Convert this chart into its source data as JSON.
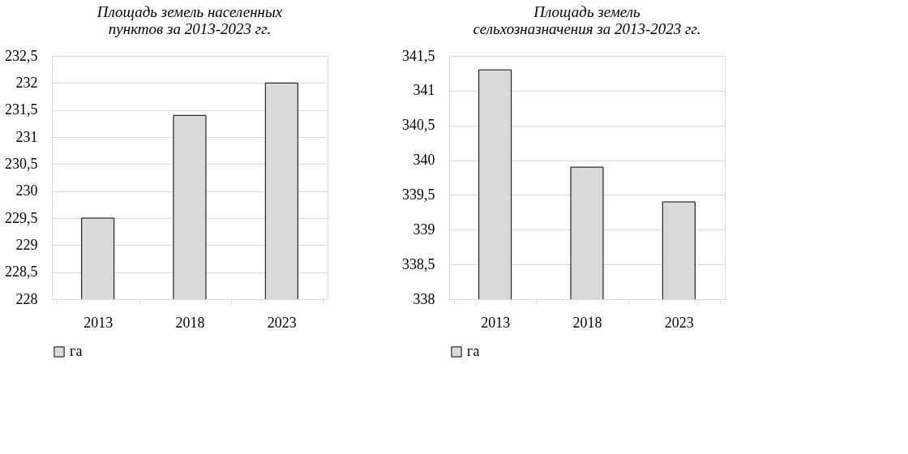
{
  "chart_data": [
    {
      "type": "bar",
      "title": "Площадь земель населенных\nпунктов за 2013-2023 гг.",
      "categories": [
        "2013",
        "2018",
        "2023"
      ],
      "series": [
        {
          "name": "га",
          "color": "#d9d9d9",
          "values": [
            229.5,
            231.4,
            232.0
          ]
        }
      ],
      "ylim": [
        228,
        232.5
      ],
      "yticks": [
        228,
        {
          "value": 228.5,
          "label": "228,5"
        },
        229,
        {
          "value": 229.5,
          "label": "229,5"
        },
        230,
        {
          "value": 230.5,
          "label": "230,5"
        },
        231,
        {
          "value": 231.5,
          "label": "231,5"
        },
        232,
        {
          "value": 232.5,
          "label": "232,5"
        }
      ],
      "grid": "y",
      "legend": "bottom"
    },
    {
      "type": "bar",
      "title": "Площадь земель\nсельхозназначения за 2013-2023 гг.",
      "categories": [
        "2013",
        "2018",
        "2023"
      ],
      "series": [
        {
          "name": "га",
          "color": "#d9d9d9",
          "values": [
            341.3,
            339.9,
            339.4
          ]
        }
      ],
      "ylim": [
        338,
        341.5
      ],
      "yticks": [
        338,
        {
          "value": 338.5,
          "label": "338,5"
        },
        339,
        {
          "value": 339.5,
          "label": "339,5"
        },
        340,
        {
          "value": 340.5,
          "label": "340,5"
        },
        341,
        {
          "value": 341.5,
          "label": "341,5"
        }
      ],
      "grid": "y",
      "legend": "bottom"
    }
  ]
}
